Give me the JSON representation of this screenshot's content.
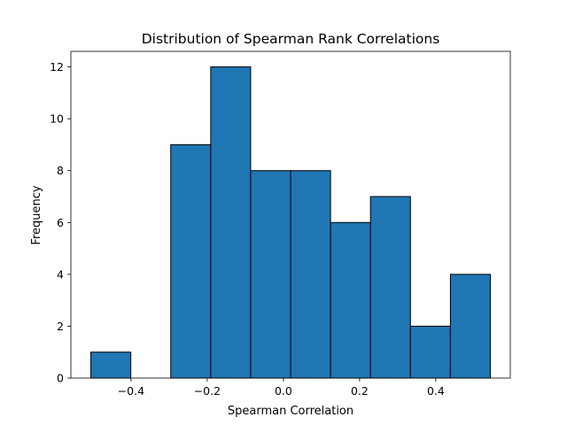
{
  "chart_data": {
    "type": "bar",
    "title": "Distribution of Spearman Rank Correlations",
    "xlabel": "Spearman Correlation",
    "ylabel": "Frequency",
    "bin_edges": [
      -0.5054,
      -0.4005,
      -0.2957,
      -0.1908,
      -0.086,
      0.0189,
      0.1237,
      0.2286,
      0.3334,
      0.4383,
      0.5431
    ],
    "values": [
      1,
      0,
      9,
      12,
      8,
      8,
      6,
      7,
      2,
      4
    ],
    "xlim": [
      -0.5578,
      0.5955
    ],
    "ylim": [
      0,
      12.6
    ],
    "xticks": [
      -0.4,
      -0.2,
      0.0,
      0.2,
      0.4
    ],
    "xtick_labels": [
      "−0.4",
      "−0.2",
      "0.0",
      "0.2",
      "0.4"
    ],
    "yticks": [
      0,
      2,
      4,
      6,
      8,
      10,
      12
    ],
    "ytick_labels": [
      "0",
      "2",
      "4",
      "6",
      "8",
      "10",
      "12"
    ],
    "grid": false,
    "bar_color": "#1f77b4",
    "edge_color": "#000000"
  }
}
